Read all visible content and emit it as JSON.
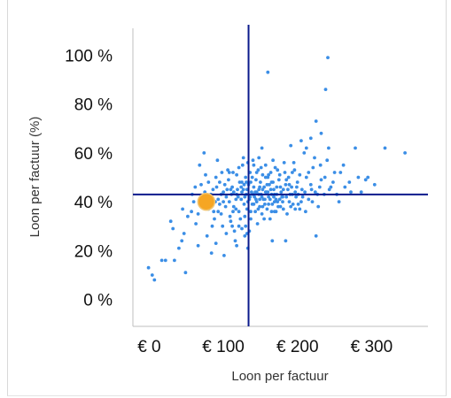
{
  "chart_data": {
    "type": "scatter",
    "xlabel": "Loon per factuur",
    "ylabel": "Loon per factuur (%)",
    "x_ticks": [
      {
        "value": 0,
        "label": "€ 0"
      },
      {
        "value": 100,
        "label": "€ 100"
      },
      {
        "value": 200,
        "label": "€ 200"
      },
      {
        "value": 300,
        "label": "€ 300"
      }
    ],
    "y_ticks": [
      {
        "value": 0,
        "label": "0 %"
      },
      {
        "value": 20,
        "label": "20 %"
      },
      {
        "value": 40,
        "label": "40 %"
      },
      {
        "value": 60,
        "label": "60 %"
      },
      {
        "value": 80,
        "label": "80 %"
      },
      {
        "value": 100,
        "label": "100 %"
      }
    ],
    "xlim": [
      -22,
      376
    ],
    "ylim": [
      -11,
      111
    ],
    "reference_lines": {
      "x": 134,
      "y": 43
    },
    "highlight_point": {
      "x": 77,
      "y": 40
    },
    "series": [
      {
        "values": [
          [
            -1,
            13
          ],
          [
            4,
            10
          ],
          [
            7,
            8
          ],
          [
            17,
            16
          ],
          [
            22,
            16
          ],
          [
            34,
            16
          ],
          [
            29,
            32
          ],
          [
            32,
            29
          ],
          [
            40,
            21
          ],
          [
            44,
            24
          ],
          [
            47,
            27
          ],
          [
            45,
            37
          ],
          [
            52,
            34
          ],
          [
            57,
            36
          ],
          [
            49,
            11
          ],
          [
            63,
            31
          ],
          [
            66,
            22
          ],
          [
            69,
            41
          ],
          [
            72,
            38
          ],
          [
            75,
            44
          ],
          [
            62,
            46
          ],
          [
            68,
            55
          ],
          [
            74,
            60
          ],
          [
            80,
            48
          ],
          [
            83,
            43
          ],
          [
            85,
            30
          ],
          [
            78,
            26
          ],
          [
            88,
            33
          ],
          [
            90,
            50
          ],
          [
            92,
            57
          ],
          [
            95,
            39
          ],
          [
            97,
            35
          ],
          [
            100,
            44
          ],
          [
            102,
            47
          ],
          [
            104,
            27
          ],
          [
            106,
            53
          ],
          [
            108,
            40
          ],
          [
            110,
            32
          ],
          [
            112,
            46
          ],
          [
            114,
            38
          ],
          [
            116,
            24
          ],
          [
            118,
            51
          ],
          [
            120,
            42
          ],
          [
            121,
            36
          ],
          [
            122,
            48
          ],
          [
            124,
            41
          ],
          [
            125,
            29
          ],
          [
            126,
            55
          ],
          [
            127,
            45
          ],
          [
            128,
            39
          ],
          [
            129,
            34
          ],
          [
            130,
            50
          ],
          [
            131,
            43
          ],
          [
            132,
            37
          ],
          [
            133,
            21
          ],
          [
            134,
            47
          ],
          [
            135,
            41
          ],
          [
            136,
            52
          ],
          [
            137,
            33
          ],
          [
            138,
            44
          ],
          [
            139,
            39
          ],
          [
            140,
            57
          ],
          [
            141,
            46
          ],
          [
            142,
            42
          ],
          [
            143,
            36
          ],
          [
            144,
            49
          ],
          [
            145,
            40
          ],
          [
            146,
            31
          ],
          [
            147,
            53
          ],
          [
            148,
            45
          ],
          [
            149,
            38
          ],
          [
            150,
            48
          ],
          [
            151,
            43
          ],
          [
            152,
            35
          ],
          [
            153,
            51
          ],
          [
            154,
            41
          ],
          [
            155,
            46
          ],
          [
            156,
            39
          ],
          [
            157,
            55
          ],
          [
            158,
            44
          ],
          [
            159,
            37
          ],
          [
            160,
            50
          ],
          [
            161,
            42
          ],
          [
            162,
            47
          ],
          [
            163,
            33
          ],
          [
            164,
            52
          ],
          [
            165,
            43
          ],
          [
            166,
            39
          ],
          [
            167,
            48
          ],
          [
            168,
            45
          ],
          [
            169,
            36
          ],
          [
            170,
            54
          ],
          [
            171,
            41
          ],
          [
            172,
            46
          ],
          [
            174,
            38
          ],
          [
            176,
            51
          ],
          [
            178,
            44
          ],
          [
            180,
            40
          ],
          [
            182,
            56
          ],
          [
            184,
            47
          ],
          [
            186,
            35
          ],
          [
            188,
            50
          ],
          [
            190,
            43
          ],
          [
            192,
            46
          ],
          [
            194,
            39
          ],
          [
            196,
            53
          ],
          [
            198,
            42
          ],
          [
            200,
            48
          ],
          [
            203,
            37
          ],
          [
            206,
            45
          ],
          [
            209,
            60
          ],
          [
            212,
            50
          ],
          [
            215,
            41
          ],
          [
            218,
            47
          ],
          [
            221,
            54
          ],
          [
            224,
            44
          ],
          [
            228,
            38
          ],
          [
            232,
            49
          ],
          [
            236,
            43
          ],
          [
            240,
            57
          ],
          [
            245,
            46
          ],
          [
            250,
            52
          ],
          [
            256,
            40
          ],
          [
            262,
            55
          ],
          [
            270,
            48
          ],
          [
            278,
            62
          ],
          [
            286,
            44
          ],
          [
            295,
            50
          ],
          [
            304,
            47
          ],
          [
            318,
            62
          ],
          [
            345,
            60
          ],
          [
            160,
            93
          ],
          [
            241,
            99
          ],
          [
            238,
            86
          ],
          [
            225,
            73
          ],
          [
            232,
            68
          ],
          [
            218,
            66
          ],
          [
            205,
            65
          ],
          [
            242,
            62
          ],
          [
            191,
            63
          ],
          [
            152,
            62
          ],
          [
            148,
            58
          ],
          [
            212,
            62
          ],
          [
            166,
            24
          ],
          [
            184,
            24
          ],
          [
            225,
            26
          ],
          [
            132,
            27
          ],
          [
            101,
            18
          ],
          [
            90,
            23
          ],
          [
            112,
            30
          ],
          [
            118,
            22
          ],
          [
            130,
            30
          ],
          [
            84,
            19
          ],
          [
            60,
            40
          ],
          [
            66,
            35
          ],
          [
            70,
            47
          ],
          [
            58,
            43
          ],
          [
            76,
            51
          ],
          [
            80,
            37
          ],
          [
            86,
            45
          ],
          [
            93,
            41
          ],
          [
            99,
            30
          ],
          [
            103,
            38
          ],
          [
            107,
            49
          ],
          [
            111,
            43
          ],
          [
            115,
            28
          ],
          [
            119,
            45
          ],
          [
            123,
            33
          ],
          [
            127,
            58
          ],
          [
            131,
            48
          ],
          [
            135,
            28
          ],
          [
            139,
            50
          ],
          [
            143,
            44
          ],
          [
            147,
            37
          ],
          [
            151,
            54
          ],
          [
            155,
            33
          ],
          [
            159,
            47
          ],
          [
            163,
            41
          ],
          [
            167,
            57
          ],
          [
            171,
            36
          ],
          [
            175,
            49
          ],
          [
            179,
            42
          ],
          [
            183,
            52
          ],
          [
            187,
            45
          ],
          [
            191,
            38
          ],
          [
            195,
            56
          ],
          [
            199,
            46
          ],
          [
            203,
            51
          ],
          [
            207,
            42
          ],
          [
            211,
            36
          ],
          [
            215,
            52
          ],
          [
            219,
            45
          ],
          [
            223,
            58
          ],
          [
            227,
            43
          ],
          [
            231,
            55
          ],
          [
            237,
            50
          ],
          [
            243,
            45
          ],
          [
            248,
            48
          ],
          [
            253,
            43
          ],
          [
            258,
            52
          ],
          [
            264,
            46
          ],
          [
            272,
            44
          ],
          [
            282,
            50
          ],
          [
            292,
            49
          ],
          [
            108,
            52
          ],
          [
            113,
            36
          ],
          [
            117,
            41
          ],
          [
            121,
            54
          ],
          [
            125,
            44
          ],
          [
            129,
            26
          ],
          [
            133,
            56
          ],
          [
            137,
            48
          ],
          [
            141,
            39
          ],
          [
            145,
            52
          ],
          [
            149,
            46
          ],
          [
            153,
            38
          ],
          [
            157,
            44
          ],
          [
            161,
            51
          ],
          [
            165,
            36
          ],
          [
            169,
            43
          ],
          [
            173,
            40
          ],
          [
            177,
            46
          ],
          [
            181,
            37
          ],
          [
            185,
            42
          ],
          [
            189,
            47
          ],
          [
            193,
            43
          ],
          [
            197,
            37
          ],
          [
            201,
            43
          ],
          [
            205,
            40
          ],
          [
            97,
            43
          ],
          [
            95,
            48
          ],
          [
            93,
            36
          ],
          [
            98,
            52
          ],
          [
            91,
            46
          ],
          [
            89,
            40
          ],
          [
            87,
            36
          ],
          [
            105,
            45
          ],
          [
            109,
            34
          ],
          [
            113,
            52
          ],
          [
            117,
            37
          ],
          [
            121,
            30
          ],
          [
            125,
            48
          ],
          [
            129,
            42
          ],
          [
            133,
            40
          ],
          [
            137,
            36
          ],
          [
            141,
            55
          ],
          [
            145,
            44
          ],
          [
            149,
            41
          ],
          [
            153,
            45
          ],
          [
            157,
            50
          ],
          [
            161,
            39
          ],
          [
            165,
            48
          ],
          [
            169,
            40
          ],
          [
            173,
            53
          ],
          [
            177,
            38
          ],
          [
            181,
            45
          ],
          [
            185,
            49
          ],
          [
            189,
            40
          ],
          [
            193,
            52
          ],
          [
            197,
            44
          ],
          [
            201,
            39
          ],
          [
            210,
            44
          ],
          [
            220,
            40
          ],
          [
            230,
            46
          ],
          [
            100,
            40
          ],
          [
            104,
            42
          ],
          [
            110,
            45
          ],
          [
            114,
            44
          ],
          [
            118,
            43
          ],
          [
            124,
            46
          ],
          [
            128,
            47
          ],
          [
            132,
            45
          ],
          [
            136,
            42
          ],
          [
            140,
            43
          ],
          [
            144,
            41
          ],
          [
            148,
            43
          ],
          [
            152,
            42
          ],
          [
            156,
            41
          ],
          [
            160,
            44
          ],
          [
            164,
            45
          ],
          [
            168,
            42
          ],
          [
            172,
            43
          ],
          [
            176,
            41
          ],
          [
            180,
            42
          ]
        ]
      }
    ],
    "colors": {
      "points": "#3b8ee6",
      "highlight": "#f6a623",
      "highlight_edge": "#f2c46e",
      "reference_lines": "#0a1a8c",
      "axis": "#bfbfbf"
    },
    "grid": false,
    "legend": "none"
  }
}
